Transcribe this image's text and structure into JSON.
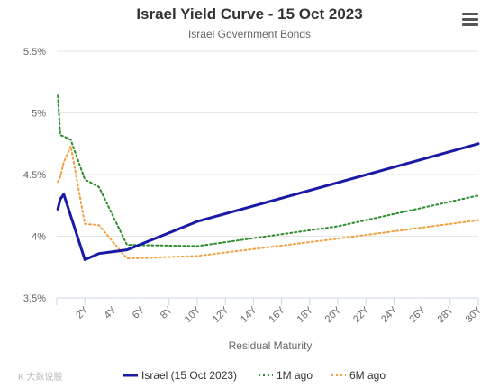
{
  "menu": {
    "icon": "hamburger-menu-icon"
  },
  "watermark": "K 大数说股",
  "chart_data": {
    "type": "line",
    "title": "Israel Yield Curve - 15 Oct 2023",
    "subtitle": "Israel Government Bonds",
    "xlabel": "Residual Maturity",
    "ylabel": "",
    "xlim": [
      0,
      30
    ],
    "ylim": [
      3.5,
      5.5
    ],
    "y_ticks": [
      3.5,
      4,
      4.5,
      5,
      5.5
    ],
    "y_tick_labels": [
      "3.5%",
      "4%",
      "4.5%",
      "5%",
      "5.5%"
    ],
    "x_ticks": [
      2,
      4,
      6,
      8,
      10,
      12,
      14,
      16,
      18,
      20,
      22,
      24,
      26,
      28,
      30
    ],
    "x_tick_labels": [
      "2Y",
      "4Y",
      "6Y",
      "8Y",
      "10Y",
      "12Y",
      "14Y",
      "16Y",
      "18Y",
      "20Y",
      "22Y",
      "24Y",
      "26Y",
      "28Y",
      "30Y"
    ],
    "grid": "horizontal",
    "legend_position": "bottom",
    "series": [
      {
        "name": "Israel (15 Oct 2023)",
        "color": "#1a1aa6",
        "style": "solid",
        "x": [
          0.08,
          0.25,
          0.5,
          2,
          3,
          5,
          10,
          30
        ],
        "values": [
          4.22,
          4.3,
          4.34,
          3.81,
          3.86,
          3.89,
          4.12,
          4.75
        ]
      },
      {
        "name": "1M ago",
        "color": "#2e8b2e",
        "style": "dotted",
        "x": [
          0.08,
          0.25,
          0.5,
          1,
          2,
          3,
          5,
          10,
          20,
          30
        ],
        "values": [
          5.14,
          4.82,
          4.81,
          4.78,
          4.46,
          4.4,
          3.93,
          3.92,
          4.08,
          4.33
        ]
      },
      {
        "name": "6M ago",
        "color": "#f0a040",
        "style": "dotted",
        "x": [
          0.08,
          0.25,
          0.5,
          1,
          2,
          3,
          5,
          10,
          20,
          30
        ],
        "values": [
          4.44,
          4.48,
          4.6,
          4.73,
          4.1,
          4.09,
          3.82,
          3.84,
          3.98,
          4.13
        ]
      }
    ]
  }
}
